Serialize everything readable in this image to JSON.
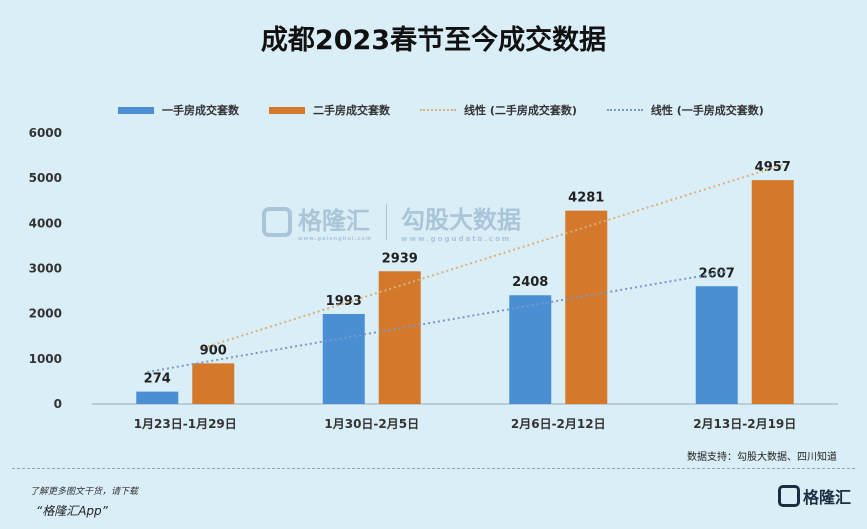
{
  "title": "成都2023春节至今成交数据",
  "legend": {
    "first_hand": "一手房成交套数",
    "second_hand": "二手房成交套数",
    "trend_second": "线性 (二手房成交套数)",
    "trend_first": "线性 (一手房成交套数)"
  },
  "colors": {
    "first_hand": "#4a8fd4",
    "second_hand": "#d4782c",
    "trend_second": "#d9b07a",
    "trend_first": "#7a98c4",
    "background": "#daeef8"
  },
  "chart_data": {
    "type": "bar",
    "categories": [
      "1月23日-1月29日",
      "1月30日-2月5日",
      "2月6日-2月12日",
      "2月13日-2月19日"
    ],
    "series": [
      {
        "name": "一手房成交套数",
        "values": [
          274,
          1993,
          2408,
          2607
        ]
      },
      {
        "name": "二手房成交套数",
        "values": [
          900,
          2939,
          4281,
          4957
        ]
      }
    ],
    "trendlines": [
      {
        "name": "线性 (二手房成交套数)",
        "series": "二手房成交套数"
      },
      {
        "name": "线性 (一手房成交套数)",
        "series": "一手房成交套数"
      }
    ],
    "yticks": [
      0,
      1000,
      2000,
      3000,
      4000,
      5000,
      6000
    ],
    "ylim": [
      0,
      6000
    ],
    "data_labels": true,
    "legend_position": "top",
    "grid": false
  },
  "source": "数据支持：勾股大数据、四川知道",
  "watermark": {
    "brand": "格隆汇",
    "brand_sub": "www.gelonghui.com",
    "partner": "勾股大数据",
    "partner_sub": "www.gogudata.com"
  },
  "footer": {
    "note": "了解更多图文干货，请下载",
    "app": "“格隆汇App”",
    "logo_text": "格隆汇"
  }
}
